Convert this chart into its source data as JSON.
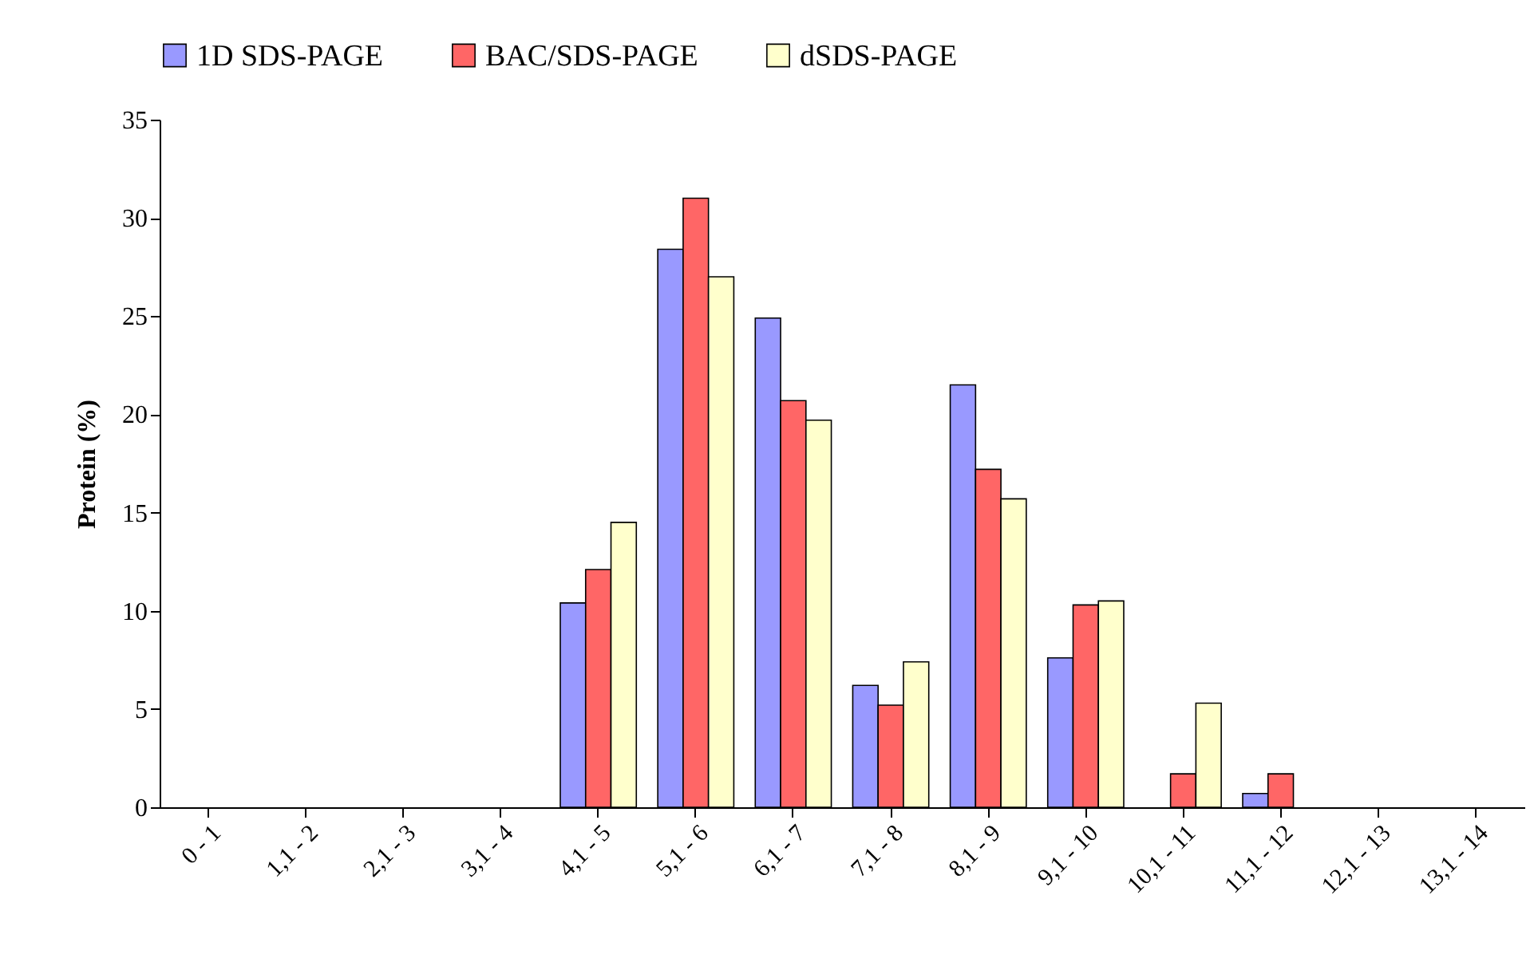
{
  "chart_data": {
    "type": "bar",
    "ylabel": "Protein (%)",
    "categories": [
      "0 - 1",
      "1,1 - 2",
      "2,1 - 3",
      "3,1 - 4",
      "4,1 - 5",
      "5,1 - 6",
      "6,1 - 7",
      "7,1 - 8",
      "8,1 - 9",
      "9,1 - 10",
      "10,1 - 11",
      "11,1 - 12",
      "12,1 - 13",
      "13,1 - 14"
    ],
    "series": [
      {
        "name": "1D SDS-PAGE",
        "color": "#9999ff",
        "values": [
          null,
          null,
          null,
          null,
          10.4,
          28.4,
          24.9,
          6.2,
          21.5,
          7.6,
          null,
          0.7,
          null,
          null
        ]
      },
      {
        "name": "BAC/SDS-PAGE",
        "color": "#ff6666",
        "values": [
          null,
          null,
          null,
          null,
          12.1,
          31,
          20.7,
          5.2,
          17.2,
          10.3,
          1.7,
          1.7,
          null,
          null
        ]
      },
      {
        "name": "dSDS-PAGE",
        "color": "#ffffcc",
        "values": [
          null,
          null,
          null,
          null,
          14.5,
          27,
          19.7,
          7.4,
          15.7,
          10.5,
          5.3,
          null,
          null,
          null
        ]
      }
    ],
    "ylim": [
      0,
      35
    ],
    "yticks": [
      0,
      5,
      10,
      15,
      20,
      25,
      30,
      35
    ],
    "grid": false,
    "legend": "top"
  }
}
